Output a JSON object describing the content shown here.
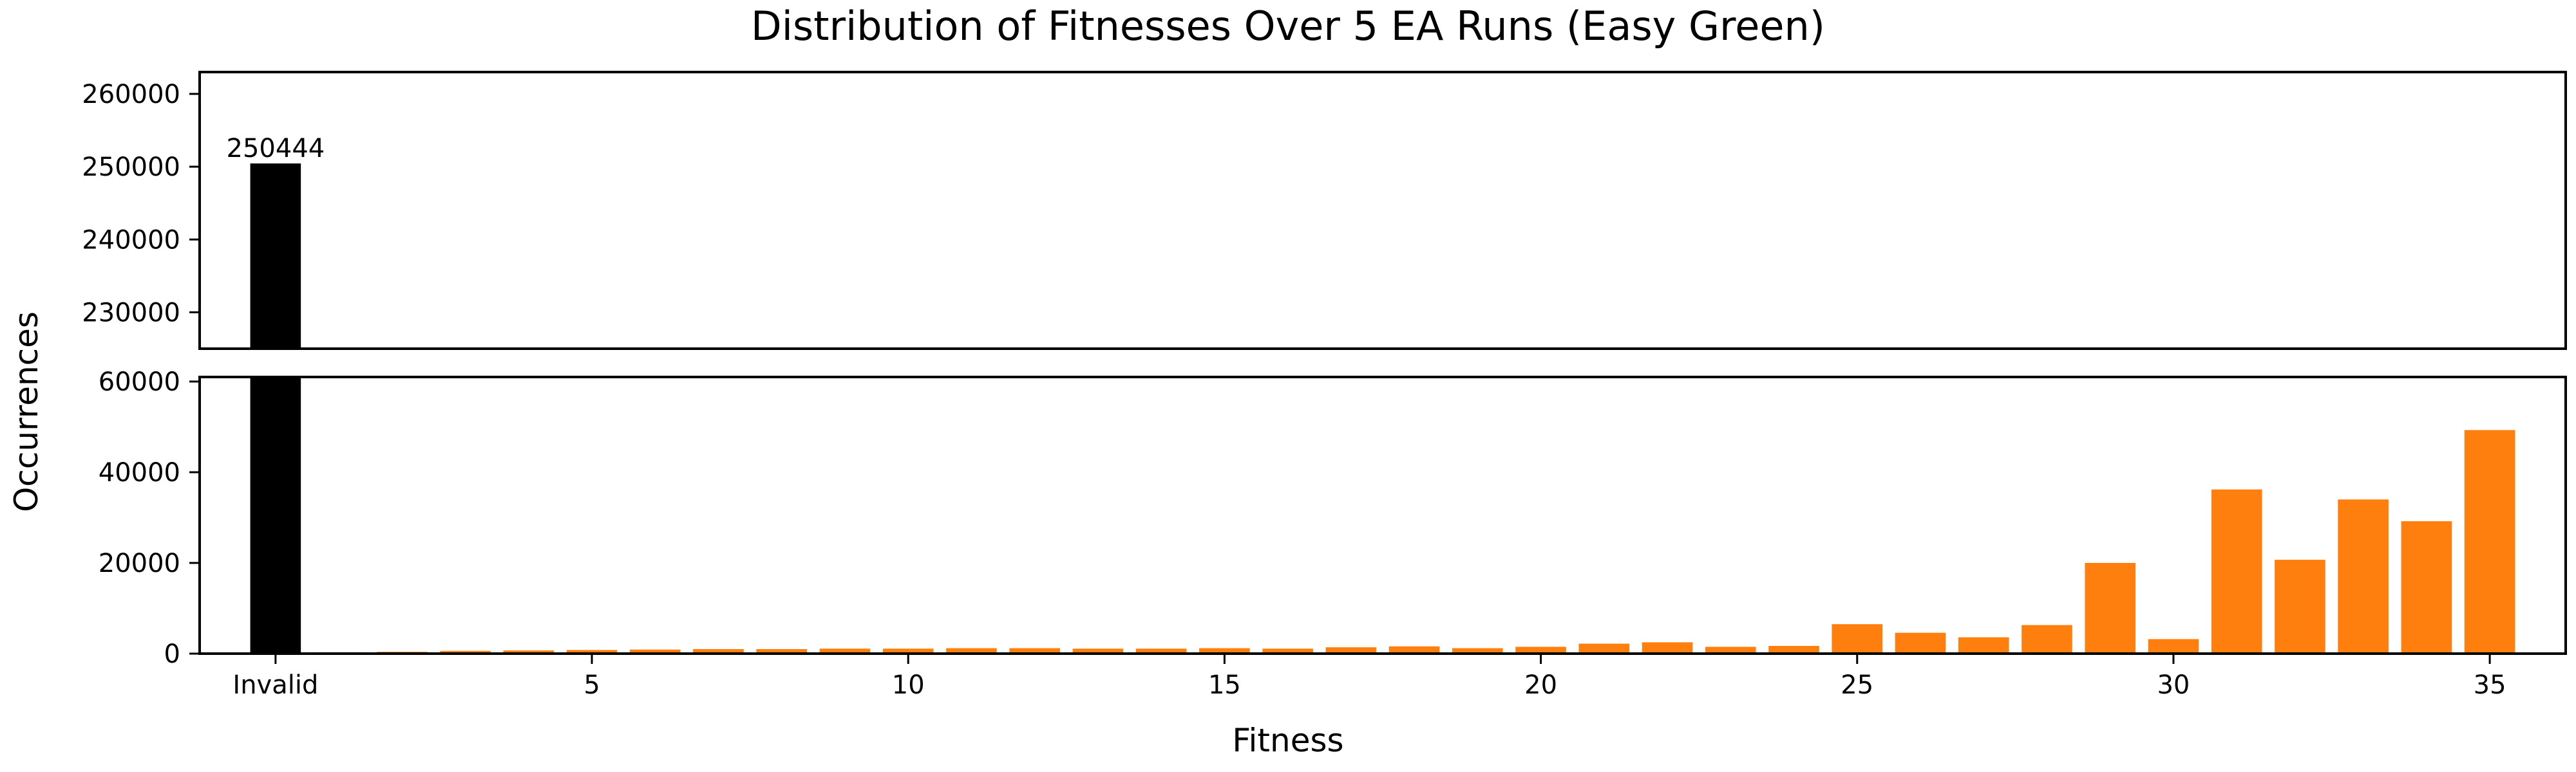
{
  "chart_data": {
    "type": "bar",
    "title": "Distribution of Fitnesses Over 5 EA Runs (Easy Green)",
    "xlabel": "Fitness",
    "ylabel": "Occurrences",
    "categories": [
      "Invalid",
      "1",
      "2",
      "3",
      "4",
      "5",
      "6",
      "7",
      "8",
      "9",
      "10",
      "11",
      "12",
      "13",
      "14",
      "15",
      "16",
      "17",
      "18",
      "19",
      "20",
      "21",
      "22",
      "23",
      "24",
      "25",
      "26",
      "27",
      "28",
      "29",
      "30",
      "31",
      "32",
      "33",
      "34",
      "35"
    ],
    "values": [
      250444,
      300,
      400,
      600,
      700,
      800,
      900,
      1000,
      1000,
      1100,
      1100,
      1200,
      1200,
      1100,
      1100,
      1200,
      1100,
      1400,
      1600,
      1200,
      1500,
      2200,
      2500,
      1500,
      1700,
      6500,
      4600,
      3600,
      6300,
      20000,
      3200,
      36200,
      20700,
      34000,
      29200,
      49300
    ],
    "colors": {
      "invalid": "#000000",
      "valid": "#ff7f0e"
    },
    "xticks": [
      {
        "category": "Invalid",
        "label": "Invalid"
      },
      {
        "category": "5",
        "label": "5"
      },
      {
        "category": "10",
        "label": "10"
      },
      {
        "category": "15",
        "label": "15"
      },
      {
        "category": "20",
        "label": "20"
      },
      {
        "category": "25",
        "label": "25"
      },
      {
        "category": "30",
        "label": "30"
      },
      {
        "category": "35",
        "label": "35"
      }
    ],
    "upper_panel": {
      "ylim": [
        225000,
        263000
      ],
      "yticks": [
        230000,
        240000,
        250000,
        260000
      ]
    },
    "lower_panel": {
      "ylim": [
        0,
        61000
      ],
      "yticks": [
        0,
        20000,
        40000,
        60000
      ]
    },
    "annotations": [
      {
        "category": "Invalid",
        "text": "250444"
      }
    ],
    "grid": false,
    "broken_axis": true
  }
}
